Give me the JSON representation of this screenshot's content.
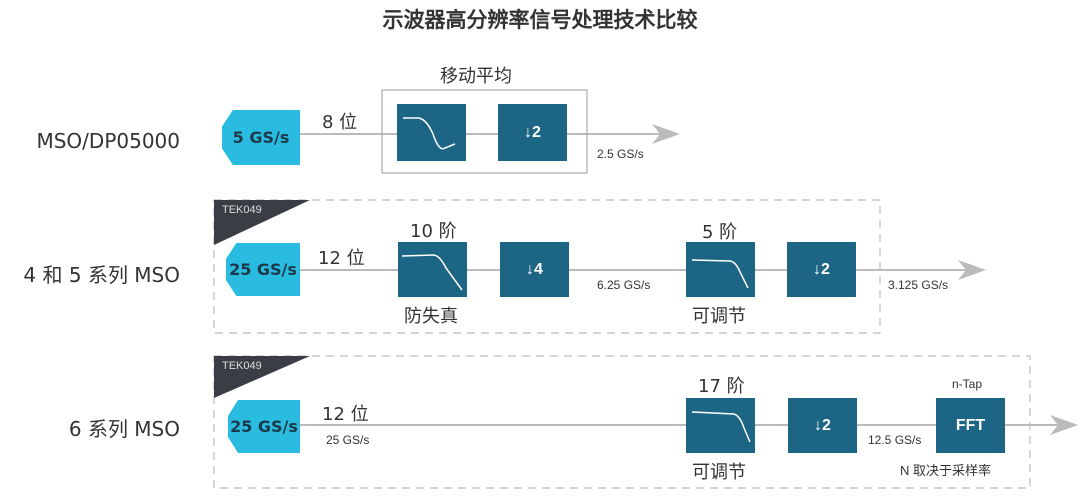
{
  "title": "示波器高分辨率信号处理技术比较",
  "colors": {
    "block": "#1d6584",
    "source": "#29bce0",
    "tag": "#3b3d44",
    "line": "#bbbbbb"
  },
  "rows": [
    {
      "label": "MSO/DP05000",
      "source": "5 GS/s",
      "bits": "8 位",
      "group_label": "移动平均",
      "decimate": "↓2",
      "out_rate": "2.5 GS/s"
    },
    {
      "label": "4 和 5 系列 MSO",
      "tag": "TEK049",
      "source": "25 GS/s",
      "bits": "12 位",
      "filter1_order": "10 阶",
      "filter1_label": "防失真",
      "decimate1": "↓4",
      "mid_rate": "6.25 GS/s",
      "filter2_order": "5 阶",
      "filter2_label": "可调节",
      "decimate2": "↓2",
      "out_rate": "3.125 GS/s"
    },
    {
      "label": "6 系列 MSO",
      "tag": "TEK049",
      "source": "25 GS/s",
      "bits": "12 位",
      "in_rate": "25 GS/s",
      "filter_order": "17 阶",
      "filter_label": "可调节",
      "decimate": "↓2",
      "mid_rate": "12.5 GS/s",
      "fft_top": "n-Tap",
      "fft": "FFT",
      "fft_note": "N 取决于采样率"
    }
  ]
}
